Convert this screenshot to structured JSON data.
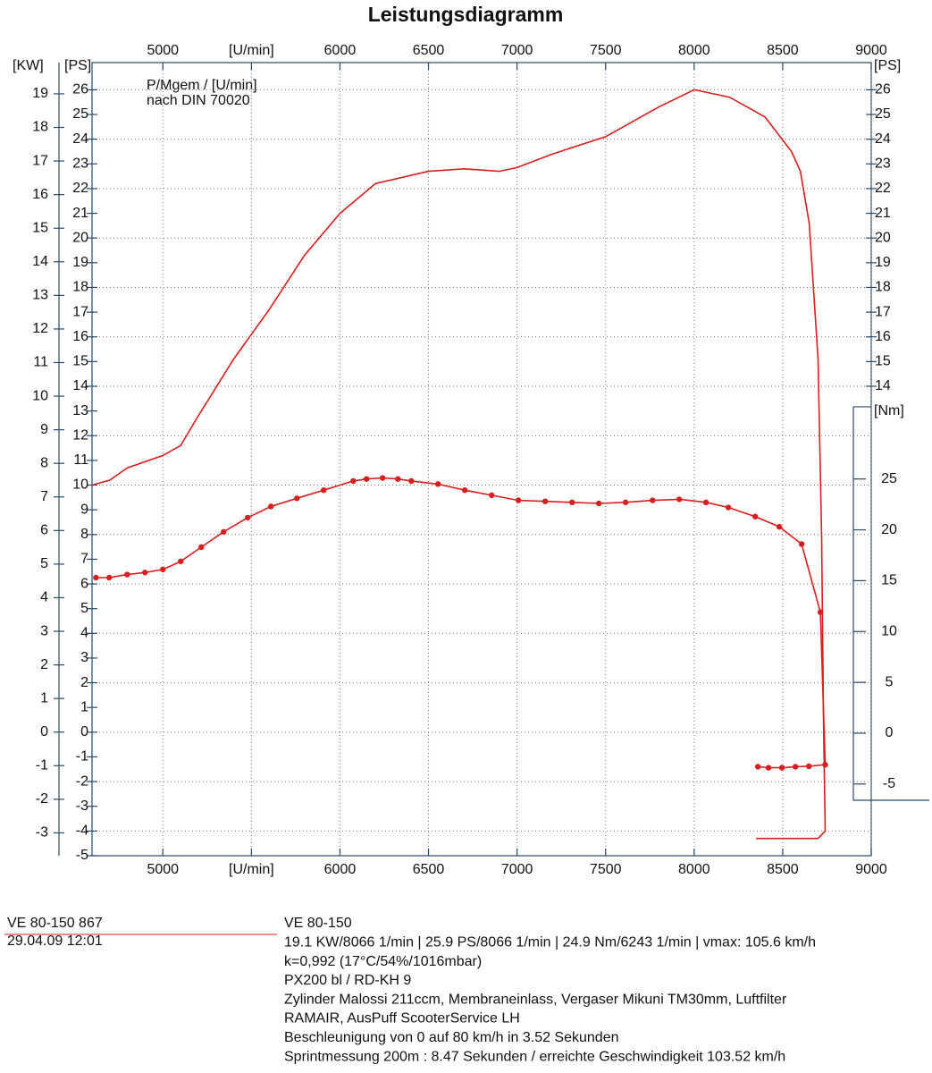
{
  "chart_data": {
    "type": "line",
    "title": "Leistungsdiagramm",
    "annotations": [
      "P/Mgem / [U/min]",
      "nach DIN 70020"
    ],
    "xlim": [
      4600,
      9000
    ],
    "xticks": [
      5000,
      {
        "value": 5500,
        "label": "[U/min]"
      },
      6000,
      6500,
      7000,
      7500,
      8000,
      8500,
      9000
    ],
    "y_label": "[PS]",
    "ylim": [
      -5,
      27.1
    ],
    "yticks": [
      -5,
      -4,
      -3,
      -2,
      -1,
      0,
      1,
      2,
      3,
      4,
      5,
      6,
      7,
      8,
      9,
      10,
      11,
      12,
      13,
      14,
      15,
      16,
      17,
      18,
      19,
      20,
      21,
      22,
      23,
      24,
      25,
      26
    ],
    "right_ps_ticks": [
      14,
      15,
      16,
      17,
      18,
      19,
      20,
      21,
      22,
      23,
      24,
      25,
      26
    ],
    "kw_axis": {
      "label": "[KW]",
      "lim": [
        -3.68,
        19.93
      ],
      "ticks": [
        -3,
        -2,
        -1,
        0,
        1,
        2,
        3,
        4,
        5,
        6,
        7,
        8,
        9,
        10,
        11,
        12,
        13,
        14,
        15,
        16,
        17,
        18,
        19
      ]
    },
    "nm_axis": {
      "label": "[Nm]",
      "lim": [
        -12.05,
        65.95
      ],
      "range": [
        -6.6,
        32.1
      ],
      "ticks": [
        -5,
        0,
        5,
        10,
        15,
        20,
        25
      ]
    },
    "grid": true,
    "series": [
      {
        "color": "#d81e1e",
        "axis": "y",
        "markers": false,
        "x": [
          4600,
          4700,
          4800,
          5000,
          5100,
          5200,
          5400,
          5600,
          5800,
          6000,
          6200,
          6500,
          6700,
          6900,
          7000,
          7200,
          7500,
          7800,
          8000,
          8200,
          8400,
          8550,
          8600,
          8650,
          8700,
          8720,
          8730,
          8740,
          8700,
          8500,
          8350
        ],
        "values": [
          10.0,
          10.2,
          10.7,
          11.2,
          11.6,
          12.8,
          15.1,
          17.1,
          19.3,
          21.0,
          22.2,
          22.7,
          22.8,
          22.7,
          22.85,
          23.4,
          24.1,
          25.3,
          26.0,
          25.7,
          24.9,
          23.5,
          22.7,
          20.6,
          15.1,
          7.9,
          0.7,
          -4.0,
          -4.3,
          -4.3,
          -4.3
        ]
      },
      {
        "color": "#d81e1e",
        "axis": "nm",
        "markers": true,
        "x": [
          4622,
          4697,
          4798,
          4899,
          5000,
          5101,
          5217,
          5343,
          5479,
          5610,
          5757,
          5908,
          6075,
          6150,
          6241,
          6327,
          6403,
          6554,
          6705,
          6857,
          7008,
          7159,
          7311,
          7462,
          7613,
          7765,
          7916,
          8067,
          8193,
          8345,
          8481,
          8607,
          8713,
          8740,
          8648,
          8572,
          8496,
          8420,
          8360
        ],
        "values": [
          15.3,
          15.3,
          15.6,
          15.8,
          16.1,
          16.9,
          18.3,
          19.8,
          21.2,
          22.3,
          23.1,
          23.9,
          24.8,
          25.0,
          25.1,
          25.0,
          24.8,
          24.5,
          23.9,
          23.4,
          22.9,
          22.8,
          22.7,
          22.6,
          22.7,
          22.9,
          23.0,
          22.7,
          22.2,
          21.3,
          20.3,
          18.6,
          11.9,
          -3.1,
          -3.25,
          -3.3,
          -3.4,
          -3.4,
          -3.3
        ]
      }
    ]
  },
  "footer": {
    "left": [
      "VE 80-150 867",
      "29.04.09  12:01"
    ],
    "right": [
      "VE 80-150",
      "19.1 KW/8066 1/min  |  25.9 PS/8066 1/min  |  24.9 Nm/6243 1/min | vmax: 105.6 km/h",
      "k=0,992 (17°C/54%/1016mbar)",
      "PX200 bl / RD-KH 9",
      "Zylinder Malossi 211ccm, Membraneinlass, Vergaser Mikuni TM30mm, Luftfilter",
      "RAMAIR, AusPuff ScooterService LH",
      "Beschleunigung von 0 auf 80 km/h in 3.52 Sekunden",
      "Sprintmessung 200m : 8.47 Sekunden / erreichte Geschwindigkeit 103.52 km/h"
    ]
  }
}
